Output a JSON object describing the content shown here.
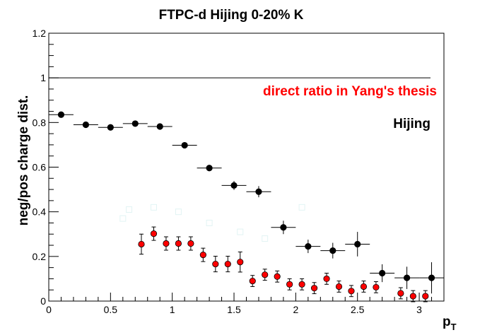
{
  "chart_data": {
    "type": "scatter",
    "title": "FTPC-d Hijing 0-20% K",
    "xlabel": "p",
    "xlabel_sub": "T",
    "ylabel": "neg/pos charge dist.",
    "xlim": [
      0,
      3.2
    ],
    "ylim": [
      0,
      1.2
    ],
    "x_ticks": [
      "0",
      "0.5",
      "1",
      "1.5",
      "2",
      "2.5",
      "3"
    ],
    "y_ticks": [
      "0",
      "0.2",
      "0.4",
      "0.6",
      "0.8",
      "1",
      "1.2"
    ],
    "reference_line_y": 1.0,
    "annotations": [
      "direct ratio in Yang's thesis",
      "Hijing"
    ],
    "colors": {
      "black_series": "#000000",
      "red_series": "#ff0000",
      "faint_series": "#e2f4f4"
    },
    "series": [
      {
        "color": "#000000",
        "points": [
          {
            "x": 0.1,
            "y": 0.835,
            "xerr": 0.1,
            "yerr": 0.012
          },
          {
            "x": 0.3,
            "y": 0.79,
            "xerr": 0.1,
            "yerr": 0.012
          },
          {
            "x": 0.5,
            "y": 0.778,
            "xerr": 0.1,
            "yerr": 0.012
          },
          {
            "x": 0.7,
            "y": 0.795,
            "xerr": 0.1,
            "yerr": 0.012
          },
          {
            "x": 0.9,
            "y": 0.782,
            "xerr": 0.1,
            "yerr": 0.012
          },
          {
            "x": 1.1,
            "y": 0.698,
            "xerr": 0.1,
            "yerr": 0.012
          },
          {
            "x": 1.3,
            "y": 0.596,
            "xerr": 0.1,
            "yerr": 0.012
          },
          {
            "x": 1.5,
            "y": 0.518,
            "xerr": 0.1,
            "yerr": 0.02
          },
          {
            "x": 1.7,
            "y": 0.49,
            "xerr": 0.1,
            "yerr": 0.025
          },
          {
            "x": 1.9,
            "y": 0.33,
            "xerr": 0.1,
            "yerr": 0.03
          },
          {
            "x": 2.1,
            "y": 0.245,
            "xerr": 0.1,
            "yerr": 0.03
          },
          {
            "x": 2.3,
            "y": 0.226,
            "xerr": 0.1,
            "yerr": 0.035
          },
          {
            "x": 2.5,
            "y": 0.255,
            "xerr": 0.1,
            "yerr": 0.055
          },
          {
            "x": 2.7,
            "y": 0.125,
            "xerr": 0.1,
            "yerr": 0.04
          },
          {
            "x": 2.9,
            "y": 0.104,
            "xerr": 0.1,
            "yerr": 0.05
          },
          {
            "x": 3.1,
            "y": 0.104,
            "xerr": 0.1,
            "yerr": 0.07
          }
        ]
      },
      {
        "color": "#ff0000",
        "points": [
          {
            "x": 0.75,
            "y": 0.255,
            "yerr": 0.045
          },
          {
            "x": 0.85,
            "y": 0.302,
            "yerr": 0.03
          },
          {
            "x": 0.95,
            "y": 0.258,
            "yerr": 0.03
          },
          {
            "x": 1.05,
            "y": 0.258,
            "yerr": 0.03
          },
          {
            "x": 1.15,
            "y": 0.258,
            "yerr": 0.03
          },
          {
            "x": 1.25,
            "y": 0.207,
            "yerr": 0.03
          },
          {
            "x": 1.35,
            "y": 0.166,
            "yerr": 0.035
          },
          {
            "x": 1.45,
            "y": 0.166,
            "yerr": 0.035
          },
          {
            "x": 1.55,
            "y": 0.175,
            "yerr": 0.045
          },
          {
            "x": 1.65,
            "y": 0.09,
            "yerr": 0.025
          },
          {
            "x": 1.75,
            "y": 0.118,
            "yerr": 0.025
          },
          {
            "x": 1.85,
            "y": 0.11,
            "yerr": 0.025
          },
          {
            "x": 1.95,
            "y": 0.075,
            "yerr": 0.025
          },
          {
            "x": 2.05,
            "y": 0.075,
            "yerr": 0.025
          },
          {
            "x": 2.15,
            "y": 0.058,
            "yerr": 0.025
          },
          {
            "x": 2.25,
            "y": 0.1,
            "yerr": 0.025
          },
          {
            "x": 2.35,
            "y": 0.065,
            "yerr": 0.025
          },
          {
            "x": 2.45,
            "y": 0.045,
            "yerr": 0.025
          },
          {
            "x": 2.55,
            "y": 0.065,
            "yerr": 0.025
          },
          {
            "x": 2.65,
            "y": 0.062,
            "yerr": 0.025
          },
          {
            "x": 2.85,
            "y": 0.035,
            "yerr": 0.025
          },
          {
            "x": 2.95,
            "y": 0.022,
            "yerr": 0.025
          },
          {
            "x": 3.05,
            "y": 0.022,
            "yerr": 0.025
          }
        ]
      },
      {
        "color": "#e2f4f4",
        "points": [
          {
            "x": 0.6,
            "y": 0.37
          },
          {
            "x": 0.65,
            "y": 0.41
          },
          {
            "x": 0.85,
            "y": 0.42
          },
          {
            "x": 1.05,
            "y": 0.4
          },
          {
            "x": 1.3,
            "y": 0.35
          },
          {
            "x": 1.55,
            "y": 0.31
          },
          {
            "x": 1.75,
            "y": 0.28
          },
          {
            "x": 2.05,
            "y": 0.42
          }
        ]
      }
    ]
  }
}
